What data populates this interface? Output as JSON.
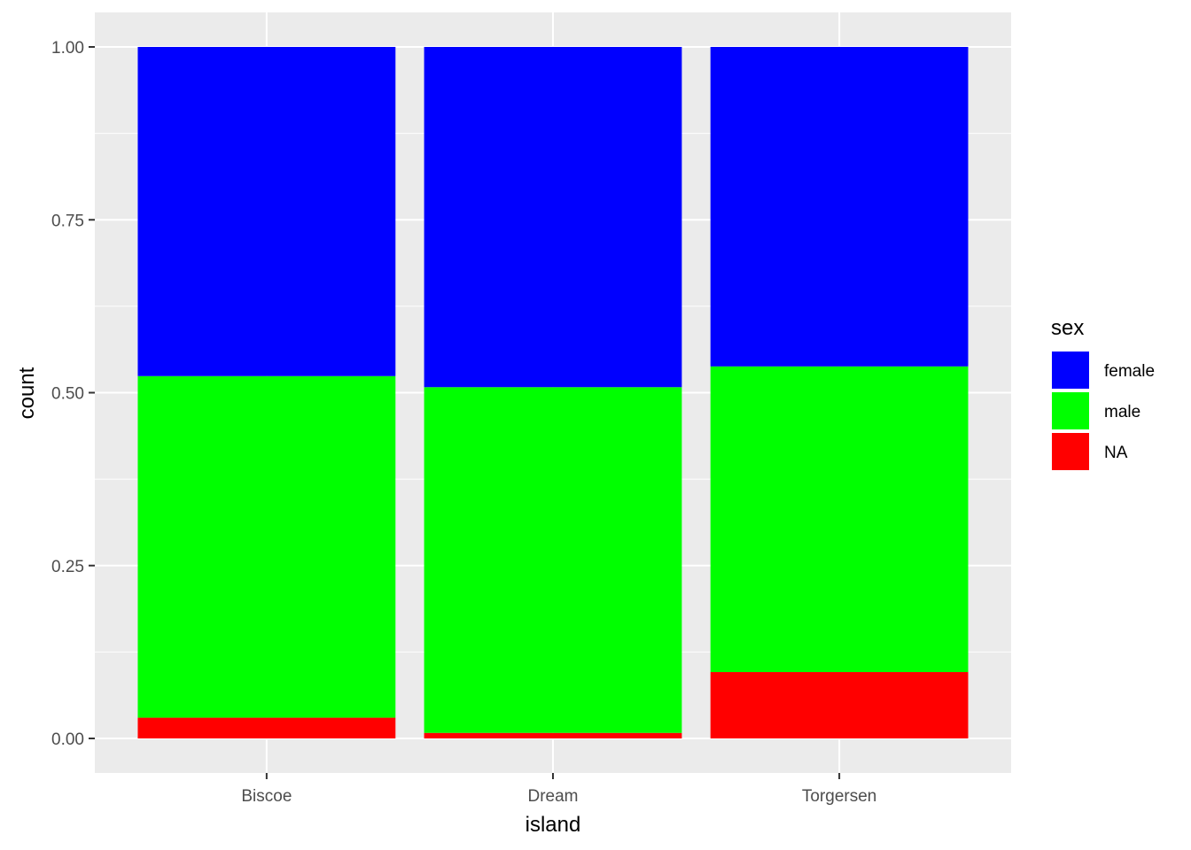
{
  "chart_data": {
    "type": "bar",
    "stacked": true,
    "position": "fill",
    "title": "",
    "xlabel": "island",
    "ylabel": "count",
    "categories": [
      "Biscoe",
      "Dream",
      "Torgersen"
    ],
    "ylim": [
      0,
      1
    ],
    "yticks": [
      0,
      0.25,
      0.5,
      0.75,
      1
    ],
    "ytick_labels": [
      "0.00",
      "0.25",
      "0.50",
      "0.75",
      "1.00"
    ],
    "grid": true,
    "legend": {
      "title": "sex",
      "placement": "right",
      "entries": [
        "female",
        "male",
        "NA"
      ]
    },
    "series": [
      {
        "name": "NA",
        "color": "#FF0000",
        "values": [
          0.03,
          0.008,
          0.096
        ]
      },
      {
        "name": "male",
        "color": "#00FF00",
        "values": [
          0.494,
          0.5,
          0.442
        ]
      },
      {
        "name": "female",
        "color": "#0000FF",
        "values": [
          0.476,
          0.492,
          0.462
        ]
      }
    ]
  }
}
